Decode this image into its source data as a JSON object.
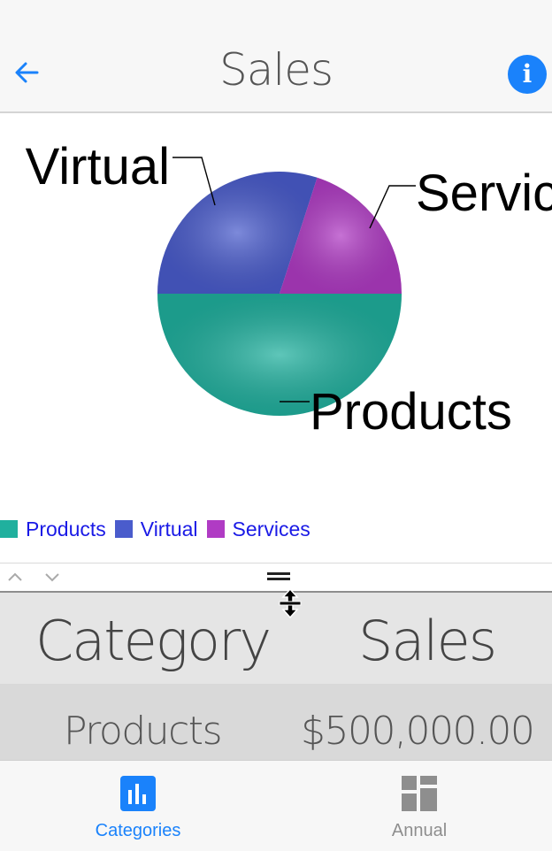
{
  "nav": {
    "title": "Sales",
    "back_icon": "arrow-left-icon",
    "info_icon": "info-icon",
    "info_glyph": "i",
    "accent_color": "#1a82fb"
  },
  "chart_data": {
    "type": "pie",
    "series": [
      {
        "name": "Products",
        "value": 50,
        "color": "#20b09e"
      },
      {
        "name": "Virtual",
        "value": 30,
        "color": "#4a5ccc"
      },
      {
        "name": "Services",
        "value": 20,
        "color": "#b03bc4"
      }
    ],
    "slice_labels": [
      "Products",
      "Virtual",
      "Servic"
    ],
    "legend": {
      "position": "bottom-left",
      "items": [
        "Products",
        "Virtual",
        "Services"
      ],
      "text_color": "#1a1ae6"
    }
  },
  "splitter": {
    "up_icon": "chevron-up-icon",
    "down_icon": "chevron-down-icon",
    "grip_icon": "grip-handle-icon",
    "cursor_icon": "resize-vertical-cursor-icon"
  },
  "table": {
    "headers": [
      "Category",
      "Sales"
    ],
    "rows": [
      {
        "category": "Products",
        "sales": "$500,000.00"
      }
    ]
  },
  "tabs": [
    {
      "label": "Categories",
      "icon": "bar-chart-icon",
      "active": true,
      "color": "#1a82fb"
    },
    {
      "label": "Annual",
      "icon": "dashboard-icon",
      "active": false,
      "color": "#8e8e8e"
    }
  ]
}
